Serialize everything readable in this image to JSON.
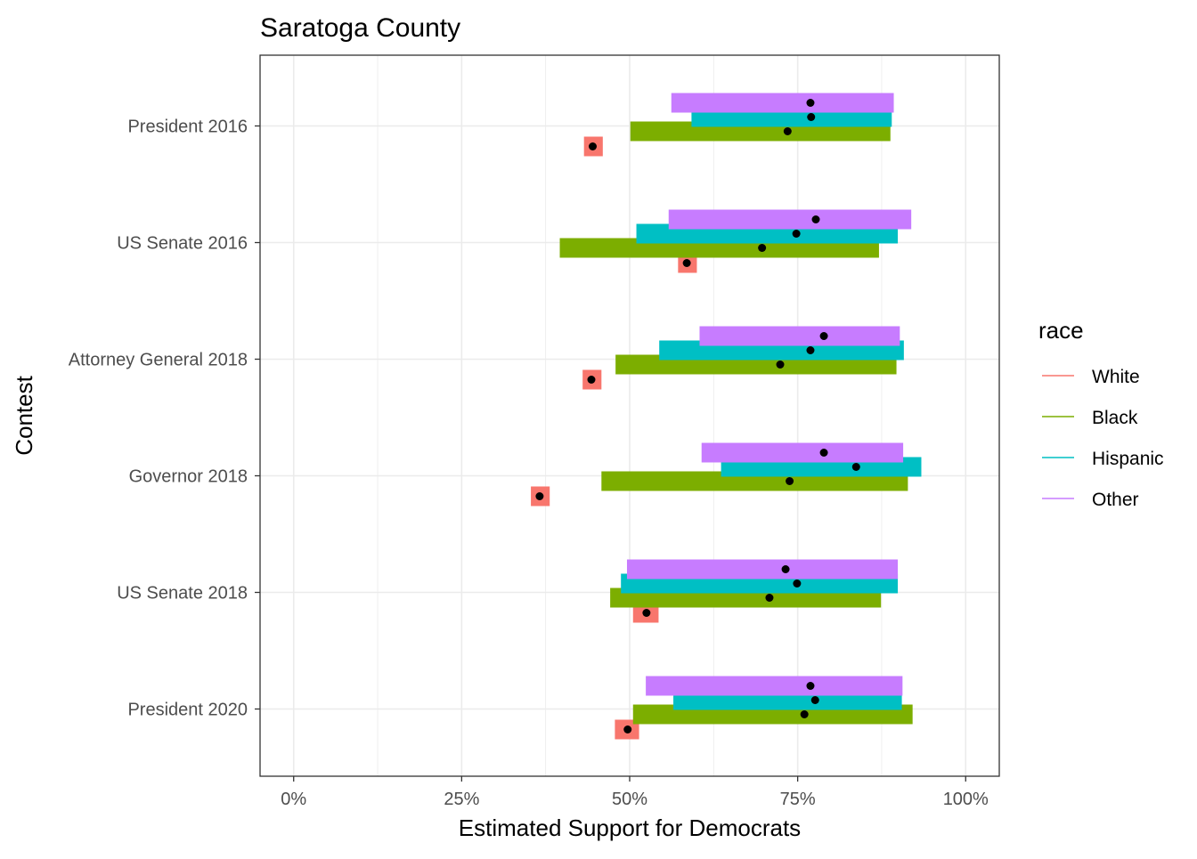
{
  "chart_data": {
    "type": "bar",
    "title": "Saratoga County",
    "xlabel": "Estimated Support for Democrats",
    "ylabel": "Contest",
    "xlim": [
      -0.05,
      1.05
    ],
    "x_ticks": [
      {
        "value": 0,
        "label": "0%"
      },
      {
        "value": 0.25,
        "label": "25%"
      },
      {
        "value": 0.5,
        "label": "50%"
      },
      {
        "value": 0.75,
        "label": "75%"
      },
      {
        "value": 1,
        "label": "100%"
      }
    ],
    "categories": [
      "President 2016",
      "US Senate 2016",
      "Attorney General 2018",
      "Governor 2018",
      "US Senate 2018",
      "President 2020"
    ],
    "grid": true,
    "legend": {
      "title": "race",
      "placement": "right",
      "entries": [
        {
          "name": "White",
          "color": "#F8766D"
        },
        {
          "name": "Black",
          "color": "#7CAE00"
        },
        {
          "name": "Hispanic",
          "color": "#00BFC4"
        },
        {
          "name": "Other",
          "color": "#C77CFF"
        }
      ]
    },
    "series": [
      {
        "name": "White",
        "color": "#F8766D",
        "values": [
          {
            "estimate": 0.445,
            "low": 0.432,
            "high": 0.46
          },
          {
            "estimate": 0.585,
            "low": 0.572,
            "high": 0.6
          },
          {
            "estimate": 0.443,
            "low": 0.43,
            "high": 0.458
          },
          {
            "estimate": 0.366,
            "low": 0.353,
            "high": 0.381
          },
          {
            "estimate": 0.525,
            "low": 0.505,
            "high": 0.543
          },
          {
            "estimate": 0.497,
            "low": 0.478,
            "high": 0.514
          }
        ]
      },
      {
        "name": "Black",
        "color": "#7CAE00",
        "values": [
          {
            "estimate": 0.735,
            "low": 0.501,
            "high": 0.888
          },
          {
            "estimate": 0.697,
            "low": 0.396,
            "high": 0.871
          },
          {
            "estimate": 0.724,
            "low": 0.479,
            "high": 0.897
          },
          {
            "estimate": 0.738,
            "low": 0.458,
            "high": 0.914
          },
          {
            "estimate": 0.708,
            "low": 0.471,
            "high": 0.874
          },
          {
            "estimate": 0.76,
            "low": 0.505,
            "high": 0.921
          }
        ]
      },
      {
        "name": "Hispanic",
        "color": "#00BFC4",
        "values": [
          {
            "estimate": 0.77,
            "low": 0.592,
            "high": 0.89
          },
          {
            "estimate": 0.748,
            "low": 0.51,
            "high": 0.899
          },
          {
            "estimate": 0.769,
            "low": 0.544,
            "high": 0.908
          },
          {
            "estimate": 0.837,
            "low": 0.636,
            "high": 0.934
          },
          {
            "estimate": 0.749,
            "low": 0.487,
            "high": 0.899
          },
          {
            "estimate": 0.776,
            "low": 0.565,
            "high": 0.905
          }
        ]
      },
      {
        "name": "Other",
        "color": "#C77CFF",
        "values": [
          {
            "estimate": 0.769,
            "low": 0.562,
            "high": 0.893
          },
          {
            "estimate": 0.777,
            "low": 0.558,
            "high": 0.919
          },
          {
            "estimate": 0.789,
            "low": 0.604,
            "high": 0.902
          },
          {
            "estimate": 0.789,
            "low": 0.607,
            "high": 0.907
          },
          {
            "estimate": 0.732,
            "low": 0.496,
            "high": 0.899
          },
          {
            "estimate": 0.769,
            "low": 0.524,
            "high": 0.906
          }
        ]
      }
    ]
  }
}
